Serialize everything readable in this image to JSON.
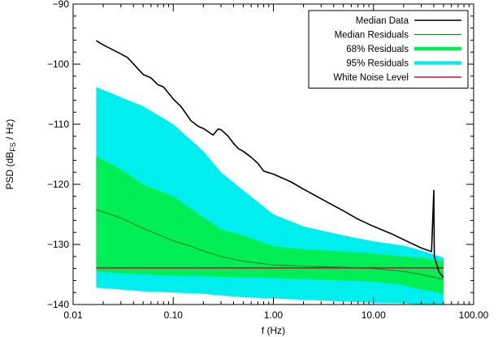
{
  "chart_data": {
    "type": "line",
    "xscale": "log",
    "xlim": [
      0.01,
      100
    ],
    "ylim": [
      -140,
      -90
    ],
    "xlabel": "f (Hz)",
    "ylabel": {
      "prefix": "PSD (dB",
      "subscript": "FS",
      "suffix": " / Hz)"
    },
    "xticks": [
      {
        "value": 0.01,
        "label": "0.01"
      },
      {
        "value": 0.1,
        "label": "0.10"
      },
      {
        "value": 1,
        "label": "1.00"
      },
      {
        "value": 10,
        "label": "10.00"
      },
      {
        "value": 100,
        "label": "100.00"
      }
    ],
    "yticks": [
      {
        "value": -140,
        "label": "−140"
      },
      {
        "value": -130,
        "label": "−130"
      },
      {
        "value": -120,
        "label": "−120"
      },
      {
        "value": -110,
        "label": "−110"
      },
      {
        "value": -100,
        "label": "−100"
      },
      {
        "value": -90,
        "label": "−90"
      }
    ],
    "legend": {
      "position": "top-right",
      "entries": [
        {
          "label": "Median Data",
          "color": "#000000",
          "weight": "normal"
        },
        {
          "label": "Median Residuals",
          "color": "#1a7a1a",
          "weight": "thin"
        },
        {
          "label": "68% Residuals",
          "color": "#00ee55",
          "weight": "thick"
        },
        {
          "label": "95% Residuals",
          "color": "#00eeee",
          "weight": "thick"
        },
        {
          "label": "White Noise Level",
          "color": "#cc1144",
          "weight": "normal"
        }
      ]
    },
    "series": [
      {
        "name": "95% Residuals",
        "kind": "band",
        "color": "#00eeee",
        "x": [
          0.017,
          0.03,
          0.05,
          0.1,
          0.2,
          0.3,
          0.5,
          1,
          2,
          5,
          10,
          20,
          30,
          50
        ],
        "upper": [
          -103.8,
          -105.5,
          -107,
          -110,
          -114.5,
          -118,
          -121,
          -125,
          -127,
          -128.5,
          -129.5,
          -130.2,
          -131,
          -132.2
        ],
        "lower": [
          -137.2,
          -137.5,
          -137.8,
          -138,
          -138.2,
          -138.5,
          -138.8,
          -139,
          -139.2,
          -139.5,
          -139.7,
          -139.8,
          -140,
          -140
        ]
      },
      {
        "name": "68% Residuals",
        "kind": "band",
        "color": "#00ee55",
        "x": [
          0.017,
          0.03,
          0.05,
          0.1,
          0.2,
          0.3,
          0.5,
          1,
          2,
          5,
          10,
          20,
          30,
          50
        ],
        "upper": [
          -115.3,
          -117.5,
          -120,
          -122,
          -125.5,
          -127.5,
          -128.5,
          -130.3,
          -130.8,
          -131.2,
          -131.5,
          -132,
          -132.2,
          -132.8
        ],
        "lower": [
          -134.5,
          -134.8,
          -135,
          -135.2,
          -135.3,
          -135.4,
          -135.5,
          -135.6,
          -135.8,
          -136,
          -136.2,
          -136.8,
          -137.5,
          -138.2
        ]
      },
      {
        "name": "Median Residuals",
        "kind": "line",
        "color": "#1a7a1a",
        "width": 1,
        "x": [
          0.017,
          0.03,
          0.05,
          0.1,
          0.15,
          0.2,
          0.3,
          0.5,
          0.7,
          1,
          2,
          5,
          10,
          20,
          30,
          50
        ],
        "y": [
          -124.2,
          -125.6,
          -127.3,
          -129.4,
          -130.3,
          -131.1,
          -132,
          -132.8,
          -133.1,
          -133.4,
          -133.6,
          -133.8,
          -134,
          -134.5,
          -135,
          -135.8
        ]
      },
      {
        "name": "White Noise Level",
        "kind": "line",
        "color": "#cc1144",
        "width": 1.8,
        "x": [
          0.017,
          50
        ],
        "y": [
          -133.9,
          -133.9
        ]
      },
      {
        "name": "Median Data",
        "kind": "line",
        "color": "#000000",
        "width": 1.6,
        "x": [
          0.017,
          0.02,
          0.03,
          0.035,
          0.05,
          0.06,
          0.07,
          0.08,
          0.1,
          0.12,
          0.15,
          0.18,
          0.2,
          0.25,
          0.28,
          0.3,
          0.35,
          0.4,
          0.45,
          0.5,
          0.6,
          0.7,
          0.8,
          1,
          1.5,
          2,
          3,
          5,
          7,
          10,
          15,
          20,
          30,
          38,
          40,
          40.5,
          45,
          50
        ],
        "y": [
          -96.1,
          -96.8,
          -98.3,
          -98.9,
          -101.7,
          -102.3,
          -103.4,
          -103.8,
          -105.8,
          -107.1,
          -109.4,
          -110.4,
          -110.7,
          -111.8,
          -110.8,
          -110.9,
          -111.9,
          -113.2,
          -114.1,
          -114.5,
          -115.5,
          -116.5,
          -117.8,
          -118.3,
          -119.6,
          -120.8,
          -122.4,
          -124.4,
          -125.8,
          -127,
          -128.2,
          -129.2,
          -130.6,
          -131.2,
          -121,
          -132,
          -134.6,
          -135.5
        ]
      }
    ]
  }
}
